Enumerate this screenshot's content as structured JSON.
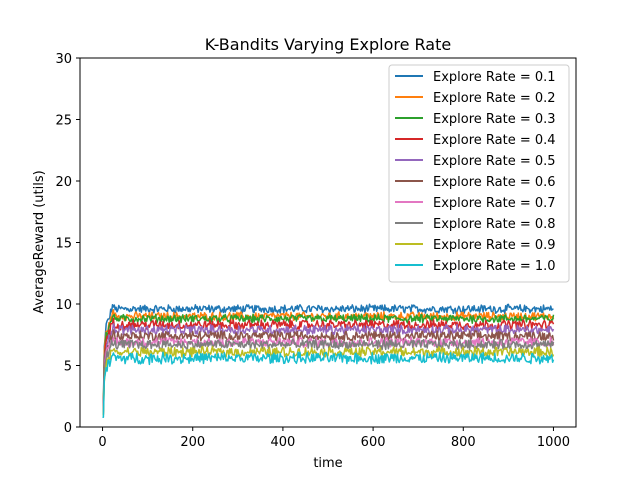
{
  "chart_data": {
    "type": "line",
    "title": "K-Bandits Varying Explore Rate",
    "xlabel": "time",
    "ylabel": "AverageReward (utils)",
    "xlim": [
      -50,
      1050
    ],
    "ylim": [
      0,
      30
    ],
    "xticks": [
      0,
      200,
      400,
      600,
      800,
      1000
    ],
    "yticks": [
      0,
      5,
      10,
      15,
      20,
      25,
      30
    ],
    "grid": false,
    "legend_position": "top-right",
    "x_range": [
      0,
      1000
    ],
    "series": [
      {
        "name": "Explore Rate = 0.1",
        "color": "#1f77b4",
        "start": 2.0,
        "steady_mean": 9.6,
        "noise_amplitude": 0.3
      },
      {
        "name": "Explore Rate = 0.2",
        "color": "#ff7f0e",
        "start": 1.8,
        "steady_mean": 9.0,
        "noise_amplitude": 0.3
      },
      {
        "name": "Explore Rate = 0.3",
        "color": "#2ca02c",
        "start": 1.6,
        "steady_mean": 8.8,
        "noise_amplitude": 0.3
      },
      {
        "name": "Explore Rate = 0.4",
        "color": "#d62728",
        "start": 1.5,
        "steady_mean": 8.3,
        "noise_amplitude": 0.35
      },
      {
        "name": "Explore Rate = 0.5",
        "color": "#9467bd",
        "start": 1.4,
        "steady_mean": 7.9,
        "noise_amplitude": 0.35
      },
      {
        "name": "Explore Rate = 0.6",
        "color": "#8c564b",
        "start": 1.3,
        "steady_mean": 7.4,
        "noise_amplitude": 0.35
      },
      {
        "name": "Explore Rate = 0.7",
        "color": "#e377c2",
        "start": 1.2,
        "steady_mean": 6.9,
        "noise_amplitude": 0.35
      },
      {
        "name": "Explore Rate = 0.8",
        "color": "#7f7f7f",
        "start": 1.1,
        "steady_mean": 6.7,
        "noise_amplitude": 0.35
      },
      {
        "name": "Explore Rate = 0.9",
        "color": "#bcbd22",
        "start": 1.0,
        "steady_mean": 6.1,
        "noise_amplitude": 0.35
      },
      {
        "name": "Explore Rate = 1.0",
        "color": "#17becf",
        "start": 0.8,
        "steady_mean": 5.6,
        "noise_amplitude": 0.4
      }
    ]
  }
}
